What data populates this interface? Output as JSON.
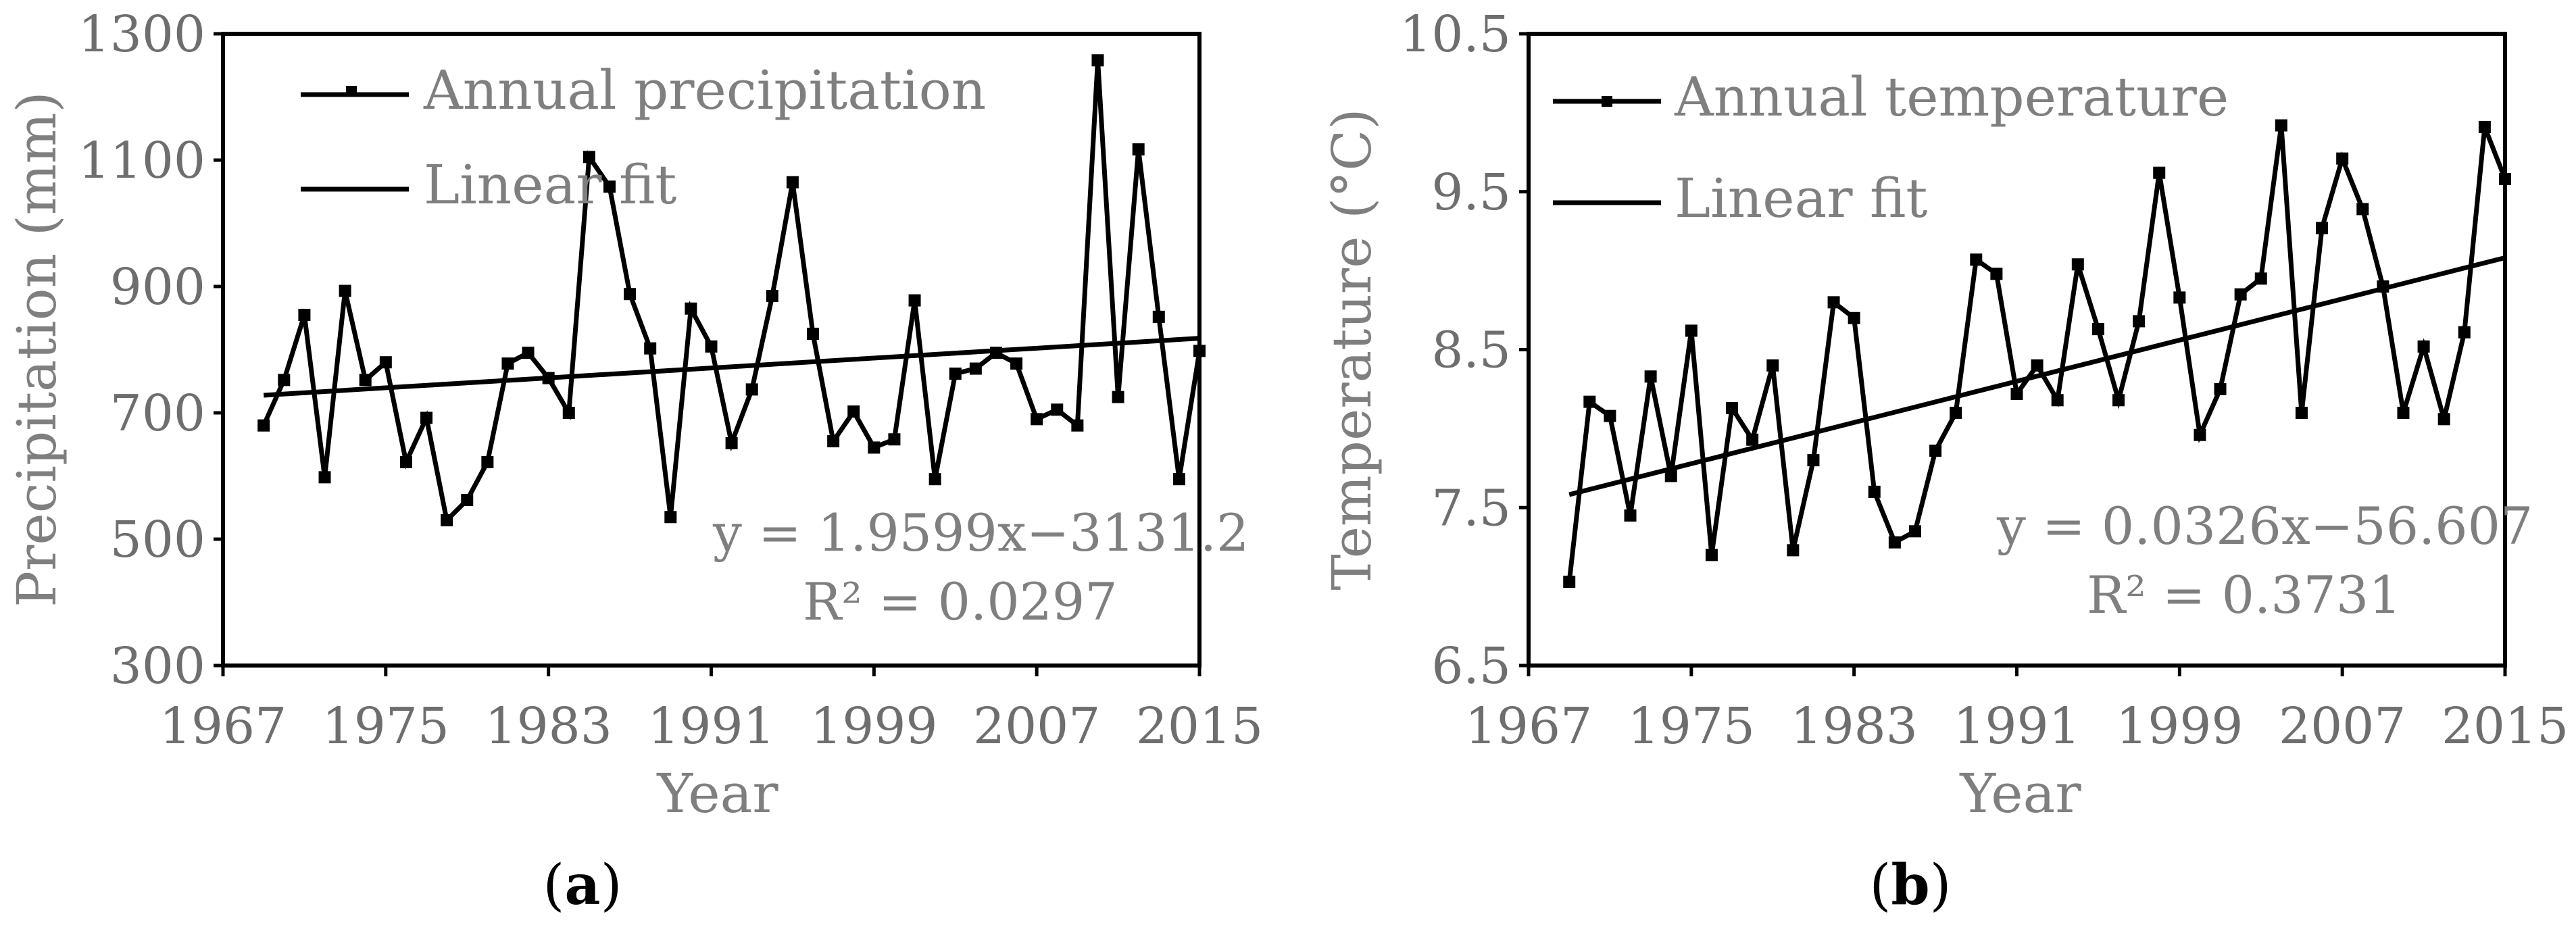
{
  "chart_data": [
    {
      "type": "line",
      "panel": "(a)",
      "panel_letter": "a",
      "xlabel": "Year",
      "ylabel": "Precipitation (mm)",
      "xlim": [
        1967,
        2015
      ],
      "ylim": [
        300,
        1300
      ],
      "xticks": [
        1967,
        1975,
        1983,
        1991,
        1999,
        2007,
        2015
      ],
      "yticks": [
        300,
        500,
        700,
        900,
        1100,
        1300
      ],
      "legend": [
        "Annual precipitation",
        "Linear fit"
      ],
      "legend_position": "top-left",
      "equation": "y = 1.9599x−3131.2",
      "r_squared": "R² = 0.0297",
      "fit": {
        "slope": 1.9599,
        "intercept": -3131.2,
        "x_start": 1969,
        "x_end": 2015
      },
      "series": [
        {
          "name": "Annual precipitation",
          "x": [
            1969,
            1970,
            1971,
            1972,
            1973,
            1974,
            1975,
            1976,
            1977,
            1978,
            1979,
            1980,
            1981,
            1982,
            1983,
            1984,
            1985,
            1986,
            1987,
            1988,
            1989,
            1990,
            1991,
            1992,
            1993,
            1994,
            1995,
            1996,
            1997,
            1998,
            1999,
            2000,
            2001,
            2002,
            2003,
            2004,
            2005,
            2006,
            2007,
            2008,
            2009,
            2010,
            2011,
            2012,
            2013,
            2014,
            2015
          ],
          "values": [
            680,
            752,
            855,
            598,
            893,
            752,
            780,
            622,
            692,
            530,
            562,
            622,
            778,
            795,
            755,
            700,
            1105,
            1058,
            888,
            802,
            535,
            865,
            805,
            652,
            737,
            885,
            1065,
            825,
            655,
            702,
            645,
            658,
            878,
            595,
            762,
            770,
            795,
            778,
            690,
            705,
            680,
            1258,
            725,
            1117,
            852,
            595,
            798
          ]
        }
      ]
    },
    {
      "type": "line",
      "panel": "(b)",
      "panel_letter": "b",
      "xlabel": "Year",
      "ylabel": "Temperature (°C)",
      "xlim": [
        1967,
        2015
      ],
      "ylim": [
        6.5,
        10.5
      ],
      "xticks": [
        1967,
        1975,
        1983,
        1991,
        1999,
        2007,
        2015
      ],
      "yticks": [
        "6.5",
        "7.5",
        "8.5",
        "9.5",
        "10.5"
      ],
      "legend": [
        "Annual temperature",
        "Linear fit"
      ],
      "legend_position": "top-left",
      "equation": "y = 0.0326x−56.607",
      "r_squared": "R² = 0.3731",
      "fit": {
        "slope": 0.0326,
        "intercept": -56.607,
        "x_start": 1969,
        "x_end": 2015
      },
      "series": [
        {
          "name": "Annual temperature",
          "x": [
            1969,
            1970,
            1971,
            1972,
            1973,
            1974,
            1975,
            1976,
            1977,
            1978,
            1979,
            1980,
            1981,
            1982,
            1983,
            1984,
            1985,
            1986,
            1987,
            1988,
            1989,
            1990,
            1991,
            1992,
            1993,
            1994,
            1995,
            1996,
            1997,
            1998,
            1999,
            2000,
            2001,
            2002,
            2003,
            2004,
            2005,
            2006,
            2007,
            2008,
            2009,
            2010,
            2011,
            2012,
            2013,
            2014,
            2015
          ],
          "values": [
            7.03,
            8.17,
            8.08,
            7.45,
            8.33,
            7.7,
            8.62,
            7.2,
            8.13,
            7.93,
            8.4,
            7.23,
            7.8,
            8.8,
            8.7,
            7.6,
            7.28,
            7.35,
            7.86,
            8.1,
            9.07,
            8.98,
            8.22,
            8.4,
            8.18,
            9.04,
            8.63,
            8.18,
            8.68,
            9.62,
            8.83,
            7.96,
            8.25,
            8.85,
            8.95,
            9.92,
            8.1,
            9.27,
            9.71,
            9.39,
            8.9,
            8.1,
            8.52,
            8.06,
            8.61,
            9.91,
            9.58
          ]
        }
      ]
    }
  ]
}
